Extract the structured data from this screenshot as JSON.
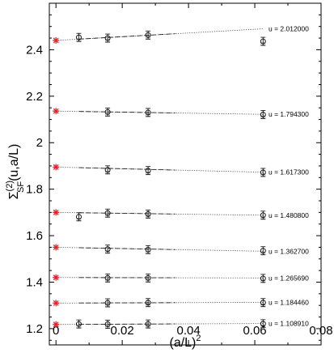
{
  "chart_data": {
    "type": "scatter",
    "xlabel": "(a/L)",
    "xlabel_sup": "2",
    "ylabel_main": "Σ",
    "ylabel_sup": "(2)",
    "ylabel_sub": "SF",
    "ylabel_tail": "(u,a/L)",
    "xlim": [
      -0.002,
      0.08
    ],
    "ylim": [
      1.13,
      2.6
    ],
    "x_ticks": [
      {
        "v": 0,
        "label": "0"
      },
      {
        "v": 0.02,
        "label": "0.02"
      },
      {
        "v": 0.04,
        "label": "0.04"
      },
      {
        "v": 0.06,
        "label": "0.06"
      },
      {
        "v": 0.08,
        "label": "0.08"
      }
    ],
    "y_ticks": [
      {
        "v": 1.2,
        "label": "1.2"
      },
      {
        "v": 1.4,
        "label": "1.4"
      },
      {
        "v": 1.6,
        "label": "1.6"
      },
      {
        "v": 1.8,
        "label": "1.8"
      },
      {
        "v": 2.0,
        "label": "2"
      },
      {
        "v": 2.2,
        "label": "2.2"
      },
      {
        "v": 2.4,
        "label": "2.4"
      }
    ],
    "continuum_color": "#e8202a",
    "series": [
      {
        "u_label": "u = 1.108910",
        "continuum": 1.218,
        "fit_end": 1.222,
        "dashed_x": 0.036,
        "points": [
          {
            "x": 0.0069,
            "y": 1.22
          },
          {
            "x": 0.0156,
            "y": 1.219
          },
          {
            "x": 0.0278,
            "y": 1.22
          },
          {
            "x": 0.0625,
            "y": 1.221
          }
        ]
      },
      {
        "u_label": "u = 1.184460",
        "continuum": 1.31,
        "fit_end": 1.313,
        "dashed_x": 0.036,
        "points": [
          {
            "x": 0.0156,
            "y": 1.311
          },
          {
            "x": 0.0278,
            "y": 1.312
          },
          {
            "x": 0.0625,
            "y": 1.312
          }
        ]
      },
      {
        "u_label": "u = 1.265690",
        "continuum": 1.42,
        "fit_end": 1.418,
        "dashed_x": 0.036,
        "points": [
          {
            "x": 0.0156,
            "y": 1.418
          },
          {
            "x": 0.0278,
            "y": 1.418
          },
          {
            "x": 0.0625,
            "y": 1.416
          }
        ]
      },
      {
        "u_label": "u = 1.362700",
        "continuum": 1.55,
        "fit_end": 1.533,
        "dashed_x": 0.036,
        "points": [
          {
            "x": 0.0156,
            "y": 1.542
          },
          {
            "x": 0.0278,
            "y": 1.54
          },
          {
            "x": 0.0625,
            "y": 1.535
          }
        ]
      },
      {
        "u_label": "u = 1.480800",
        "continuum": 1.7,
        "fit_end": 1.688,
        "dashed_x": 0.036,
        "points": [
          {
            "x": 0.0069,
            "y": 1.681
          },
          {
            "x": 0.0156,
            "y": 1.697
          },
          {
            "x": 0.0278,
            "y": 1.693
          },
          {
            "x": 0.0625,
            "y": 1.688
          }
        ]
      },
      {
        "u_label": "u = 1.617300",
        "continuum": 1.895,
        "fit_end": 1.873,
        "dashed_x": 0.036,
        "points": [
          {
            "x": 0.0156,
            "y": 1.883
          },
          {
            "x": 0.0278,
            "y": 1.88
          },
          {
            "x": 0.0625,
            "y": 1.872
          }
        ]
      },
      {
        "u_label": "u = 1.794300",
        "continuum": 2.136,
        "fit_end": 2.122,
        "dashed_x": 0.036,
        "points": [
          {
            "x": 0.0156,
            "y": 2.132
          },
          {
            "x": 0.0278,
            "y": 2.13
          },
          {
            "x": 0.0625,
            "y": 2.121
          }
        ]
      },
      {
        "u_label": "u = 2.012000",
        "continuum": 2.44,
        "fit_end": 2.49,
        "dashed_x": 0.036,
        "points": [
          {
            "x": 0.0069,
            "y": 2.453
          },
          {
            "x": 0.0156,
            "y": 2.45
          },
          {
            "x": 0.0278,
            "y": 2.463
          },
          {
            "x": 0.0625,
            "y": 2.436
          }
        ]
      }
    ]
  }
}
